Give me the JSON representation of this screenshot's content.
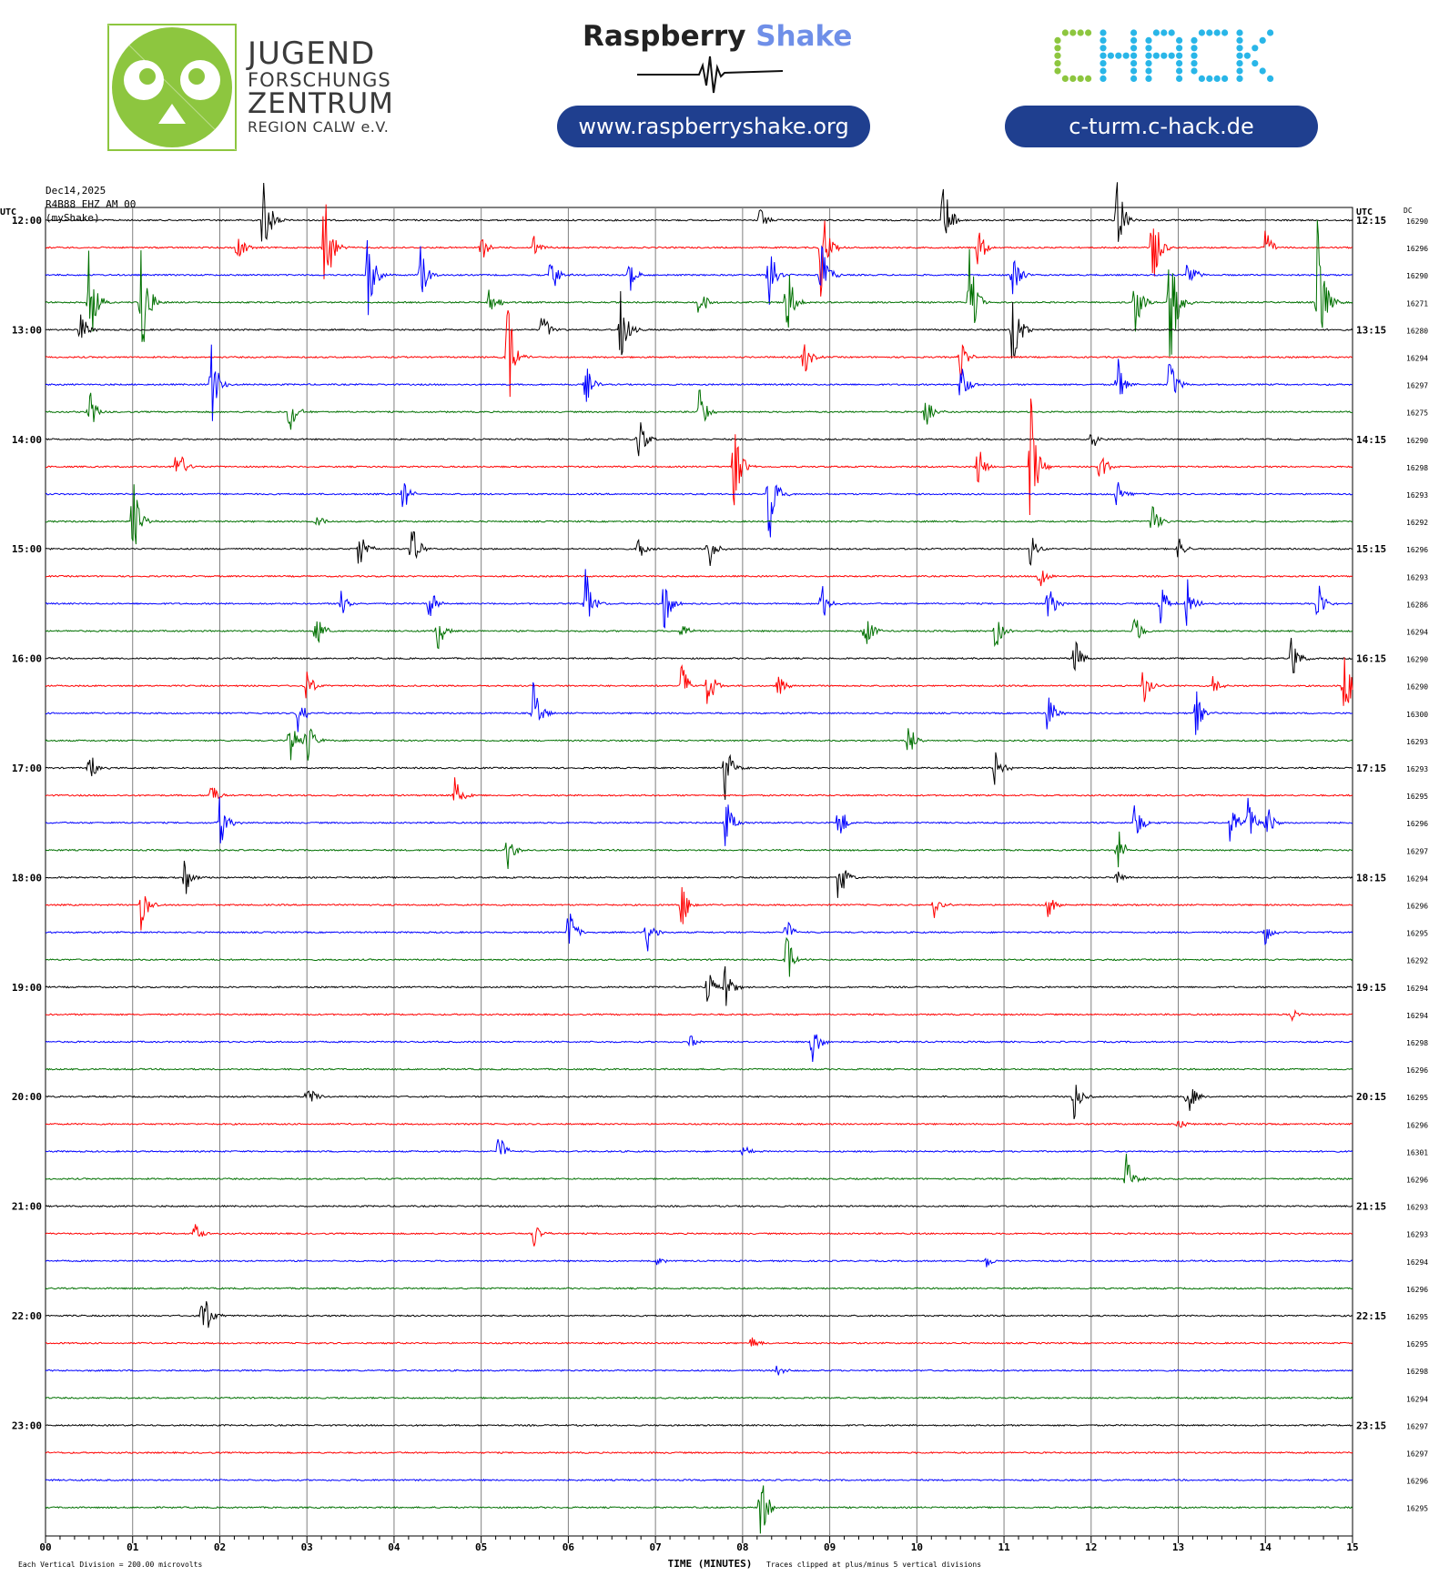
{
  "header": {
    "jfz": {
      "line1": "JUGEND",
      "line2": "FORSCHUNGS",
      "line3": "ZENTRUM",
      "line4": "REGION CALW e.V.",
      "logo_color": "#8dc63f"
    },
    "raspberry_shake": {
      "title_main": "Raspberry",
      "title_accent": "Shake",
      "accent_color": "#6f8fe8",
      "url": "www.raspberryshake.org"
    },
    "chack": {
      "logo_text": "CHACK",
      "colors": [
        "#8dc63f",
        "#29b6e8"
      ],
      "url": "c-turm.c-hack.de",
      "pill_color": "#1f3f8f"
    }
  },
  "chart_data": {
    "type": "line",
    "title_lines": [
      "Dec14,2025",
      "R4B88 EHZ AM 00",
      "(myShake)"
    ],
    "left_axis_label": "UTC",
    "right_axis_label": "UTC",
    "dc_label": "DC",
    "xlabel": "TIME (MINUTES)",
    "x_ticks": [
      "00",
      "01",
      "02",
      "03",
      "04",
      "05",
      "06",
      "07",
      "08",
      "09",
      "10",
      "11",
      "12",
      "13",
      "14",
      "15"
    ],
    "xlim": [
      0,
      15
    ],
    "left_time_labels": [
      "12:00",
      "13:00",
      "14:00",
      "15:00",
      "16:00",
      "17:00",
      "18:00",
      "19:00",
      "20:00",
      "21:00",
      "22:00",
      "23:00"
    ],
    "right_time_labels": [
      "12:15",
      "13:15",
      "14:15",
      "15:15",
      "16:15",
      "17:15",
      "18:15",
      "19:15",
      "20:15",
      "21:15",
      "22:15",
      "23:15"
    ],
    "trace_colors": [
      "#000000",
      "#ff0000",
      "#0000ff",
      "#007000"
    ],
    "dc_values": [
      16290,
      16296,
      16290,
      16271,
      16280,
      16294,
      16297,
      16275,
      16290,
      16298,
      16293,
      16292,
      16296,
      16293,
      16286,
      16294,
      16290,
      16290,
      16300,
      16293,
      16293,
      16295,
      16296,
      16297,
      16294,
      16296,
      16295,
      16292,
      16294,
      16294,
      16298,
      16296,
      16295,
      16296,
      16301,
      16296,
      16293,
      16293,
      16294,
      16296,
      16295,
      16295,
      16298,
      16294,
      16297,
      16297,
      16296,
      16295
    ],
    "footer_left": "Each Vertical Division =  200.00 microvolts",
    "footer_right": "Traces clipped at plus/minus 5 vertical divisions",
    "events": [
      {
        "row": 0,
        "min": 2.5,
        "amp": 2.2
      },
      {
        "row": 0,
        "min": 10.3,
        "amp": 2.0
      },
      {
        "row": 0,
        "min": 12.3,
        "amp": 1.8
      },
      {
        "row": 0,
        "min": 8.2,
        "amp": 0.5
      },
      {
        "row": 1,
        "min": 3.2,
        "amp": 3.0
      },
      {
        "row": 1,
        "min": 2.2,
        "amp": 0.8
      },
      {
        "row": 1,
        "min": 5.0,
        "amp": 0.6
      },
      {
        "row": 1,
        "min": 8.9,
        "amp": 2.2
      },
      {
        "row": 1,
        "min": 10.7,
        "amp": 1.0
      },
      {
        "row": 1,
        "min": 12.7,
        "amp": 2.0
      },
      {
        "row": 1,
        "min": 14.0,
        "amp": 0.8
      },
      {
        "row": 1,
        "min": 5.6,
        "amp": 0.5
      },
      {
        "row": 2,
        "min": 3.7,
        "amp": 1.8
      },
      {
        "row": 2,
        "min": 4.3,
        "amp": 1.2
      },
      {
        "row": 2,
        "min": 5.8,
        "amp": 1.0
      },
      {
        "row": 2,
        "min": 6.7,
        "amp": 1.0
      },
      {
        "row": 2,
        "min": 8.3,
        "amp": 1.8
      },
      {
        "row": 2,
        "min": 8.9,
        "amp": 1.5
      },
      {
        "row": 2,
        "min": 11.1,
        "amp": 1.2
      },
      {
        "row": 2,
        "min": 13.1,
        "amp": 1.0
      },
      {
        "row": 3,
        "min": 0.5,
        "amp": 2.5
      },
      {
        "row": 3,
        "min": 1.1,
        "amp": 3.0
      },
      {
        "row": 3,
        "min": 5.1,
        "amp": 1.0
      },
      {
        "row": 3,
        "min": 7.5,
        "amp": 0.8
      },
      {
        "row": 3,
        "min": 8.5,
        "amp": 2.0
      },
      {
        "row": 3,
        "min": 10.6,
        "amp": 2.2
      },
      {
        "row": 3,
        "min": 12.5,
        "amp": 1.5
      },
      {
        "row": 3,
        "min": 12.9,
        "amp": 3.5
      },
      {
        "row": 3,
        "min": 14.6,
        "amp": 3.5
      },
      {
        "row": 4,
        "min": 0.4,
        "amp": 0.8
      },
      {
        "row": 4,
        "min": 5.7,
        "amp": 0.8
      },
      {
        "row": 4,
        "min": 6.6,
        "amp": 1.5
      },
      {
        "row": 4,
        "min": 11.1,
        "amp": 2.0
      },
      {
        "row": 5,
        "min": 5.3,
        "amp": 2.5
      },
      {
        "row": 5,
        "min": 8.7,
        "amp": 0.8
      },
      {
        "row": 5,
        "min": 10.5,
        "amp": 0.8
      },
      {
        "row": 6,
        "min": 1.9,
        "amp": 1.8
      },
      {
        "row": 6,
        "min": 6.2,
        "amp": 0.8
      },
      {
        "row": 6,
        "min": 10.5,
        "amp": 1.2
      },
      {
        "row": 6,
        "min": 12.3,
        "amp": 1.2
      },
      {
        "row": 6,
        "min": 12.9,
        "amp": 1.2
      },
      {
        "row": 7,
        "min": 0.5,
        "amp": 1.0
      },
      {
        "row": 7,
        "min": 2.8,
        "amp": 1.0
      },
      {
        "row": 7,
        "min": 7.5,
        "amp": 1.2
      },
      {
        "row": 7,
        "min": 10.1,
        "amp": 0.8
      },
      {
        "row": 8,
        "min": 6.8,
        "amp": 1.0
      },
      {
        "row": 8,
        "min": 12.0,
        "amp": 0.5
      },
      {
        "row": 9,
        "min": 1.5,
        "amp": 1.2
      },
      {
        "row": 9,
        "min": 7.9,
        "amp": 2.0
      },
      {
        "row": 9,
        "min": 10.7,
        "amp": 1.0
      },
      {
        "row": 9,
        "min": 11.3,
        "amp": 3.0
      },
      {
        "row": 9,
        "min": 12.1,
        "amp": 0.8
      },
      {
        "row": 10,
        "min": 4.1,
        "amp": 0.8
      },
      {
        "row": 10,
        "min": 8.3,
        "amp": 2.5
      },
      {
        "row": 10,
        "min": 12.3,
        "amp": 0.8
      },
      {
        "row": 11,
        "min": 1.0,
        "amp": 2.0
      },
      {
        "row": 11,
        "min": 3.1,
        "amp": 0.5
      },
      {
        "row": 11,
        "min": 12.7,
        "amp": 0.8
      },
      {
        "row": 12,
        "min": 3.6,
        "amp": 1.0
      },
      {
        "row": 12,
        "min": 4.2,
        "amp": 1.2
      },
      {
        "row": 12,
        "min": 6.8,
        "amp": 0.5
      },
      {
        "row": 12,
        "min": 7.6,
        "amp": 1.0
      },
      {
        "row": 12,
        "min": 11.3,
        "amp": 0.8
      },
      {
        "row": 12,
        "min": 13.0,
        "amp": 0.5
      },
      {
        "row": 13,
        "min": 11.4,
        "amp": 0.8
      },
      {
        "row": 14,
        "min": 3.4,
        "amp": 1.0
      },
      {
        "row": 14,
        "min": 4.4,
        "amp": 0.8
      },
      {
        "row": 14,
        "min": 6.2,
        "amp": 1.5
      },
      {
        "row": 14,
        "min": 7.1,
        "amp": 1.2
      },
      {
        "row": 14,
        "min": 8.9,
        "amp": 1.0
      },
      {
        "row": 14,
        "min": 11.5,
        "amp": 1.0
      },
      {
        "row": 14,
        "min": 12.8,
        "amp": 1.0
      },
      {
        "row": 14,
        "min": 13.1,
        "amp": 1.0
      },
      {
        "row": 14,
        "min": 14.6,
        "amp": 1.0
      },
      {
        "row": 15,
        "min": 3.1,
        "amp": 1.0
      },
      {
        "row": 15,
        "min": 4.5,
        "amp": 0.8
      },
      {
        "row": 15,
        "min": 7.3,
        "amp": 0.5
      },
      {
        "row": 15,
        "min": 9.4,
        "amp": 1.0
      },
      {
        "row": 15,
        "min": 10.9,
        "amp": 0.8
      },
      {
        "row": 15,
        "min": 12.5,
        "amp": 0.8
      },
      {
        "row": 16,
        "min": 11.8,
        "amp": 1.0
      },
      {
        "row": 16,
        "min": 14.3,
        "amp": 1.0
      },
      {
        "row": 17,
        "min": 3.0,
        "amp": 0.8
      },
      {
        "row": 17,
        "min": 7.3,
        "amp": 1.0
      },
      {
        "row": 17,
        "min": 7.6,
        "amp": 1.0
      },
      {
        "row": 17,
        "min": 8.4,
        "amp": 0.6
      },
      {
        "row": 17,
        "min": 12.6,
        "amp": 1.0
      },
      {
        "row": 17,
        "min": 13.4,
        "amp": 0.6
      },
      {
        "row": 17,
        "min": 14.9,
        "amp": 1.8
      },
      {
        "row": 18,
        "min": 2.9,
        "amp": 0.8
      },
      {
        "row": 18,
        "min": 5.6,
        "amp": 1.5
      },
      {
        "row": 18,
        "min": 11.5,
        "amp": 1.0
      },
      {
        "row": 18,
        "min": 13.2,
        "amp": 1.0
      },
      {
        "row": 19,
        "min": 2.8,
        "amp": 1.2
      },
      {
        "row": 19,
        "min": 3.0,
        "amp": 1.0
      },
      {
        "row": 19,
        "min": 9.9,
        "amp": 0.8
      },
      {
        "row": 20,
        "min": 0.5,
        "amp": 0.8
      },
      {
        "row": 20,
        "min": 7.8,
        "amp": 1.2
      },
      {
        "row": 20,
        "min": 10.9,
        "amp": 1.0
      },
      {
        "row": 21,
        "min": 1.9,
        "amp": 0.6
      },
      {
        "row": 21,
        "min": 4.7,
        "amp": 1.0
      },
      {
        "row": 22,
        "min": 2.0,
        "amp": 1.2
      },
      {
        "row": 22,
        "min": 7.8,
        "amp": 1.2
      },
      {
        "row": 22,
        "min": 9.1,
        "amp": 1.0
      },
      {
        "row": 22,
        "min": 12.5,
        "amp": 1.0
      },
      {
        "row": 22,
        "min": 13.6,
        "amp": 1.2
      },
      {
        "row": 22,
        "min": 13.8,
        "amp": 1.0
      },
      {
        "row": 22,
        "min": 14.0,
        "amp": 1.0
      },
      {
        "row": 23,
        "min": 5.3,
        "amp": 0.8
      },
      {
        "row": 23,
        "min": 12.3,
        "amp": 1.0
      },
      {
        "row": 24,
        "min": 1.6,
        "amp": 0.8
      },
      {
        "row": 24,
        "min": 9.1,
        "amp": 1.2
      },
      {
        "row": 24,
        "min": 12.3,
        "amp": 0.5
      },
      {
        "row": 25,
        "min": 1.1,
        "amp": 1.2
      },
      {
        "row": 25,
        "min": 7.3,
        "amp": 1.0
      },
      {
        "row": 25,
        "min": 10.2,
        "amp": 0.5
      },
      {
        "row": 25,
        "min": 11.5,
        "amp": 0.6
      },
      {
        "row": 26,
        "min": 6.0,
        "amp": 1.2
      },
      {
        "row": 26,
        "min": 6.9,
        "amp": 1.0
      },
      {
        "row": 26,
        "min": 8.5,
        "amp": 0.6
      },
      {
        "row": 26,
        "min": 14.0,
        "amp": 0.5
      },
      {
        "row": 27,
        "min": 8.5,
        "amp": 1.2
      },
      {
        "row": 28,
        "min": 7.6,
        "amp": 0.8
      },
      {
        "row": 28,
        "min": 7.8,
        "amp": 1.0
      },
      {
        "row": 29,
        "min": 14.3,
        "amp": 0.3
      },
      {
        "row": 30,
        "min": 8.8,
        "amp": 1.0
      },
      {
        "row": 30,
        "min": 7.4,
        "amp": 0.3
      },
      {
        "row": 32,
        "min": 3.0,
        "amp": 0.6
      },
      {
        "row": 32,
        "min": 11.8,
        "amp": 1.0
      },
      {
        "row": 32,
        "min": 13.1,
        "amp": 1.0
      },
      {
        "row": 33,
        "min": 13.0,
        "amp": 0.3
      },
      {
        "row": 34,
        "min": 5.2,
        "amp": 0.8
      },
      {
        "row": 34,
        "min": 8.0,
        "amp": 0.3
      },
      {
        "row": 35,
        "min": 12.4,
        "amp": 1.0
      },
      {
        "row": 37,
        "min": 1.7,
        "amp": 0.6
      },
      {
        "row": 37,
        "min": 5.6,
        "amp": 0.6
      },
      {
        "row": 38,
        "min": 7.0,
        "amp": 0.3
      },
      {
        "row": 38,
        "min": 10.8,
        "amp": 0.3
      },
      {
        "row": 40,
        "min": 1.8,
        "amp": 1.6
      },
      {
        "row": 41,
        "min": 8.1,
        "amp": 0.3
      },
      {
        "row": 42,
        "min": 8.4,
        "amp": 0.3
      },
      {
        "row": 47,
        "min": 8.2,
        "amp": 1.6
      }
    ]
  }
}
